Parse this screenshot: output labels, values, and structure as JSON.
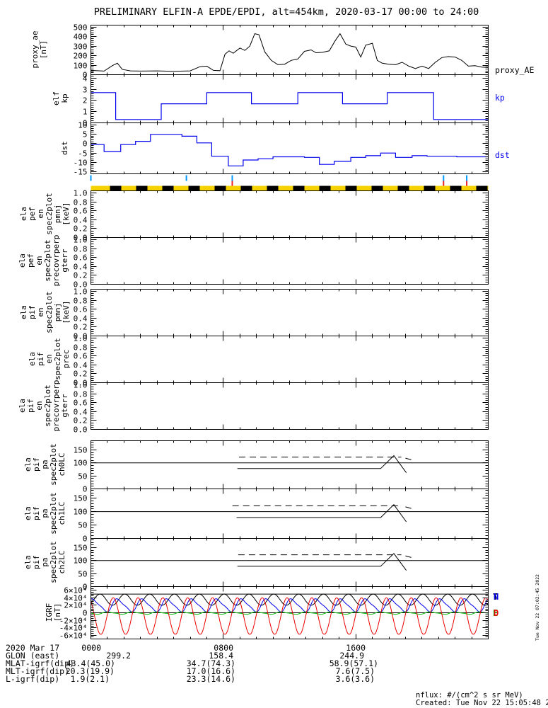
{
  "header": {
    "title": "PRELIMINARY ELFIN-A EPDE/EPDI, alt=454km, 2020-03-17 00:00 to 24:00"
  },
  "right_labels": {
    "proxy_ae": "proxy_AE",
    "kp": "kp",
    "dst": "dst"
  },
  "footer": {
    "nflux": "nflux: #/(cm^2 s sr MeV)",
    "created": "Created: Tue Nov 22 15:05:48 2022",
    "side_timestamp": "Tue Nov 22 07:02:45 2022"
  },
  "annotations": {
    "rows": [
      {
        "label": "2020 Mar 17",
        "values": [
          "0000",
          "0800",
          "1600"
        ]
      },
      {
        "label": "GLON (east)",
        "values": [
          "299.2",
          "158.4",
          "244.9"
        ]
      },
      {
        "label": "MLAT-igrf(dip)",
        "values": [
          "43.4(45.0)",
          "34.7(74.3)",
          "58.9(57.1)"
        ]
      },
      {
        "label": "MLT-igrf(dip)",
        "values": [
          "20.3(19.9)",
          "17.0(16.6)",
          "7.6(7.5)"
        ]
      },
      {
        "label": "L-igrf(dip)",
        "values": [
          "1.9(2.1)",
          "23.3(14.6)",
          "3.6(3.6)"
        ]
      }
    ]
  },
  "chart_data": [
    {
      "id": "proxy_ae",
      "type": "line",
      "title": "proxy_AE auroral electrojet proxy",
      "ylabel_words": [
        "proxy_ae",
        "[nT]"
      ],
      "right_label": "proxy_AE",
      "ylim": [
        0,
        520
      ],
      "ytick_minor": 20,
      "color": "#000000",
      "yticks": [
        [
          500,
          "500"
        ],
        [
          400,
          "400"
        ],
        [
          300,
          "300"
        ],
        [
          200,
          "200"
        ],
        [
          100,
          "100"
        ],
        [
          0,
          "0"
        ]
      ],
      "x_hours": [
        0,
        0.8,
        1.3,
        1.6,
        1.9,
        2.4,
        3,
        4,
        5,
        6,
        6.6,
        7,
        7.4,
        7.8,
        8.1,
        8.35,
        8.6,
        9,
        9.3,
        9.6,
        9.9,
        10.15,
        10.5,
        10.9,
        11.3,
        11.7,
        12.1,
        12.5,
        12.9,
        13.3,
        13.6,
        14,
        14.4,
        14.75,
        15.05,
        15.4,
        15.7,
        16,
        16.3,
        16.6,
        17,
        17.3,
        17.6,
        18,
        18.4,
        18.8,
        19.2,
        19.6,
        20,
        20.4,
        20.8,
        21.2,
        21.6,
        22,
        22.4,
        22.8,
        23.2,
        23.6,
        24
      ],
      "values": [
        45,
        38,
        95,
        120,
        55,
        40,
        38,
        40,
        36,
        40,
        85,
        90,
        45,
        42,
        215,
        250,
        225,
        280,
        255,
        300,
        430,
        420,
        240,
        150,
        105,
        110,
        150,
        165,
        245,
        260,
        230,
        235,
        250,
        355,
        430,
        320,
        300,
        290,
        185,
        310,
        330,
        150,
        120,
        110,
        105,
        130,
        90,
        65,
        90,
        65,
        130,
        180,
        190,
        185,
        150,
        90,
        95,
        80,
        75
      ]
    },
    {
      "id": "kp",
      "type": "step",
      "ylabel_words": [
        "elf",
        "kp"
      ],
      "right_label": "kp",
      "ylim": [
        0,
        4.3
      ],
      "ytick_minor": 0.2,
      "color": "#0000ee",
      "yticks": [
        [
          4,
          "4"
        ],
        [
          3,
          "3"
        ],
        [
          2,
          "2"
        ],
        [
          1,
          "1"
        ],
        [
          0,
          "0"
        ]
      ],
      "step_t": [
        0,
        1.5,
        4.25,
        7,
        9.7,
        12.5,
        15.2,
        17.9,
        20.7
      ],
      "step_v": [
        2.7,
        0.3,
        1.7,
        2.7,
        1.7,
        2.7,
        1.7,
        2.7,
        0.3
      ]
    },
    {
      "id": "dst",
      "type": "step",
      "ylabel_words": [
        "dst"
      ],
      "right_label": "dst",
      "ylim": [
        -16,
        11
      ],
      "ytick_minor": 1,
      "color": "#0000ee",
      "yticks": [
        [
          10,
          "10"
        ],
        [
          5,
          "5"
        ],
        [
          0,
          "0"
        ],
        [
          -5,
          "-5"
        ],
        [
          -10,
          "-10"
        ],
        [
          -15,
          "-15"
        ]
      ],
      "step_t": [
        0,
        0.8,
        1.8,
        2.7,
        3.6,
        5.5,
        6.4,
        7.3,
        8.3,
        9.2,
        10.1,
        11,
        12.9,
        13.8,
        14.7,
        15.7,
        16.6,
        17.5,
        18.4,
        19.4,
        20.3,
        22.1
      ],
      "step_v": [
        -0.5,
        -4.2,
        -0.5,
        1.2,
        4.9,
        3.9,
        0.4,
        -6.7,
        -11.8,
        -8.7,
        -8,
        -7,
        -7.3,
        -11,
        -9.4,
        -7.3,
        -6.4,
        -5,
        -7.3,
        -6.4,
        -6.7,
        -7
      ]
    },
    {
      "id": "orbit_strip",
      "type": "strip",
      "cyan_ticks_hours": [
        0,
        5.77,
        8.54,
        21.3,
        22.7
      ],
      "red_ticks_hours": [
        8.54,
        21.3,
        22.7
      ],
      "cyan": "#0099ff",
      "red": "#ee2222",
      "bar_yellow": "#f6d300",
      "bar_black": "#000000",
      "bar_first_offset": 27,
      "bar_period": 37,
      "bar_block_width": 16
    },
    {
      "id": "ela_pef_en_spec2plot_pmnj",
      "type": "empty",
      "ylabel_words": [
        "ela",
        "pef",
        "en",
        "spec2plot",
        "pmnj",
        "[keV]"
      ],
      "ylim": [
        0,
        1.05
      ],
      "ytick_minor": 0.05,
      "yticks": [
        [
          1.0,
          "1.0"
        ],
        [
          0.8,
          "0.8"
        ],
        [
          0.6,
          "0.6"
        ],
        [
          0.4,
          "0.4"
        ],
        [
          0.2,
          "0.2"
        ],
        [
          0.0,
          "0.0"
        ]
      ]
    },
    {
      "id": "ela_pef_en_spec2plot_precovrperp_gterr",
      "type": "empty",
      "ylabel_words": [
        "ela",
        "pef",
        "en",
        "spec2plot",
        "precovrperp",
        "gterr"
      ],
      "ylim": [
        0,
        1.05
      ],
      "ytick_minor": 0.05,
      "yticks": [
        [
          1.0,
          "1.0"
        ],
        [
          0.8,
          "0.8"
        ],
        [
          0.6,
          "0.6"
        ],
        [
          0.4,
          "0.4"
        ],
        [
          0.2,
          "0.2"
        ],
        [
          0.0,
          "0.0"
        ]
      ]
    },
    {
      "id": "ela_pif_en_spec2plot_pmnj",
      "type": "empty",
      "ylabel_words": [
        "ela",
        "pif",
        "en",
        "spec2plot",
        "pmnj",
        "[keV]"
      ],
      "ylim": [
        0,
        1.05
      ],
      "ytick_minor": 0.05,
      "yticks": [
        [
          1.0,
          "1.0"
        ],
        [
          0.8,
          "0.8"
        ],
        [
          0.6,
          "0.6"
        ],
        [
          0.4,
          "0.4"
        ],
        [
          0.2,
          "0.2"
        ],
        [
          0.0,
          "0.0"
        ]
      ]
    },
    {
      "id": "ela_pif_en_spec2plot_prec",
      "type": "empty",
      "ylabel_words": [
        "ela",
        "pif",
        "en",
        "spec2plot",
        "prec"
      ],
      "ylim": [
        0,
        1.05
      ],
      "ytick_minor": 0.05,
      "yticks": [
        [
          1.0,
          "1.0"
        ],
        [
          0.8,
          "0.8"
        ],
        [
          0.6,
          "0.6"
        ],
        [
          0.4,
          "0.4"
        ],
        [
          0.2,
          "0.2"
        ],
        [
          0.0,
          "0.0"
        ]
      ]
    },
    {
      "id": "ela_pif_en_spec2plot_precovrperp_gterr",
      "type": "empty",
      "ylabel_words": [
        "ela",
        "pif",
        "en",
        "spec2plot",
        "precovrperp",
        "gterr"
      ],
      "ylim": [
        0,
        1.05
      ],
      "ytick_minor": 0.05,
      "yticks": [
        [
          1.0,
          "1.0"
        ],
        [
          0.8,
          "0.8"
        ],
        [
          0.6,
          "0.6"
        ],
        [
          0.4,
          "0.4"
        ],
        [
          0.2,
          "0.2"
        ],
        [
          0.0,
          "0.0"
        ]
      ]
    },
    {
      "id": "ela_pif_pa_spec2plot_ch0LC",
      "type": "chi",
      "ylabel_words": [
        "ela",
        "pif",
        "pa",
        "spec2plot",
        "ch0LC"
      ],
      "ylim": [
        0,
        185
      ],
      "ytick_minor": 10,
      "color": "#000000",
      "yticks": [
        [
          150,
          "150"
        ],
        [
          100,
          "100"
        ],
        [
          50,
          "50"
        ],
        [
          0,
          "0"
        ]
      ],
      "solid_level": 100,
      "dashed": {
        "level": 122,
        "t0": 8.95,
        "t1": 18.75,
        "tail_t0": 19.0,
        "tail_t1": 19.35,
        "tail_level": 112
      },
      "trace": {
        "t0": 8.85,
        "level": 78,
        "rise_t": 17.5,
        "peak_t": 18.3,
        "peak": 128,
        "end_t": 19.05,
        "end": 62
      }
    },
    {
      "id": "ela_pif_pa_spec2plot_ch1LC",
      "type": "chi",
      "ylabel_words": [
        "ela",
        "pif",
        "pa",
        "spec2plot",
        "ch1LC"
      ],
      "ylim": [
        0,
        185
      ],
      "ytick_minor": 10,
      "color": "#000000",
      "yticks": [
        [
          150,
          "150"
        ],
        [
          100,
          "100"
        ],
        [
          50,
          "50"
        ],
        [
          0,
          "0"
        ]
      ],
      "solid_level": 100,
      "dashed": {
        "level": 122,
        "t0": 8.55,
        "t1": 18.75,
        "tail_t0": 19.0,
        "tail_t1": 19.35,
        "tail_level": 112
      },
      "trace": {
        "t0": 8.8,
        "level": 78,
        "rise_t": 17.5,
        "peak_t": 18.3,
        "peak": 126,
        "end_t": 19.05,
        "end": 62
      }
    },
    {
      "id": "ela_pif_pa_spec2plot_ch2LC",
      "type": "chi",
      "ylabel_words": [
        "ela",
        "pif",
        "pa",
        "spec2plot",
        "ch2LC"
      ],
      "ylim": [
        0,
        185
      ],
      "ytick_minor": 10,
      "color": "#000000",
      "yticks": [
        [
          150,
          "150"
        ],
        [
          100,
          "100"
        ],
        [
          50,
          "50"
        ],
        [
          0,
          "0"
        ]
      ],
      "solid_level": 100,
      "dashed": {
        "level": 122,
        "t0": 8.9,
        "t1": 18.75,
        "tail_t0": 19.0,
        "tail_t1": 19.35,
        "tail_level": 112
      },
      "trace": {
        "t0": 8.85,
        "level": 78,
        "rise_t": 17.5,
        "peak_t": 18.3,
        "peak": 127,
        "end_t": 19.05,
        "end": 62
      }
    },
    {
      "id": "igrf",
      "type": "igrf",
      "ylabel_words": [
        "IGRF",
        "[nT]"
      ],
      "ylim": [
        -70000,
        70000
      ],
      "ytick_minor": 5000,
      "yticks": [
        [
          60000,
          "6×10⁴"
        ],
        [
          40000,
          "4×10⁴"
        ],
        [
          20000,
          "2×10⁴"
        ],
        [
          0,
          "0"
        ],
        [
          -20000,
          "-2×10⁴"
        ],
        [
          -40000,
          "-4×10⁴"
        ],
        [
          -60000,
          "-6×10⁴"
        ]
      ],
      "period_hours": 1.5,
      "flat_lines": [
        50000,
        0
      ],
      "series": [
        {
          "name": "T",
          "color": "#000000",
          "base": 35000,
          "amp": 15000,
          "phase_peak_hour": 0.55,
          "harm2": 0
        },
        {
          "name": "N",
          "color": "#0000ee",
          "base": 20000,
          "amp": 16000,
          "phase_peak_hour": 0.15,
          "harm2": 4000
        },
        {
          "name": "E",
          "color": "#00bb00",
          "base": -800,
          "amp": 2800,
          "phase_peak_hour": 1.05,
          "harm2": 800
        },
        {
          "name": "D",
          "color": "#ee0000",
          "base": -9000,
          "amp": 49000,
          "phase_peak_hour": 1.35,
          "harm2": 0,
          "clip_min": -57000
        }
      ],
      "legend": [
        [
          "T",
          "#000000"
        ],
        [
          "N",
          "#0000ee"
        ],
        [
          "E",
          "#00bb00"
        ],
        [
          "D",
          "#ee0000"
        ]
      ]
    }
  ]
}
